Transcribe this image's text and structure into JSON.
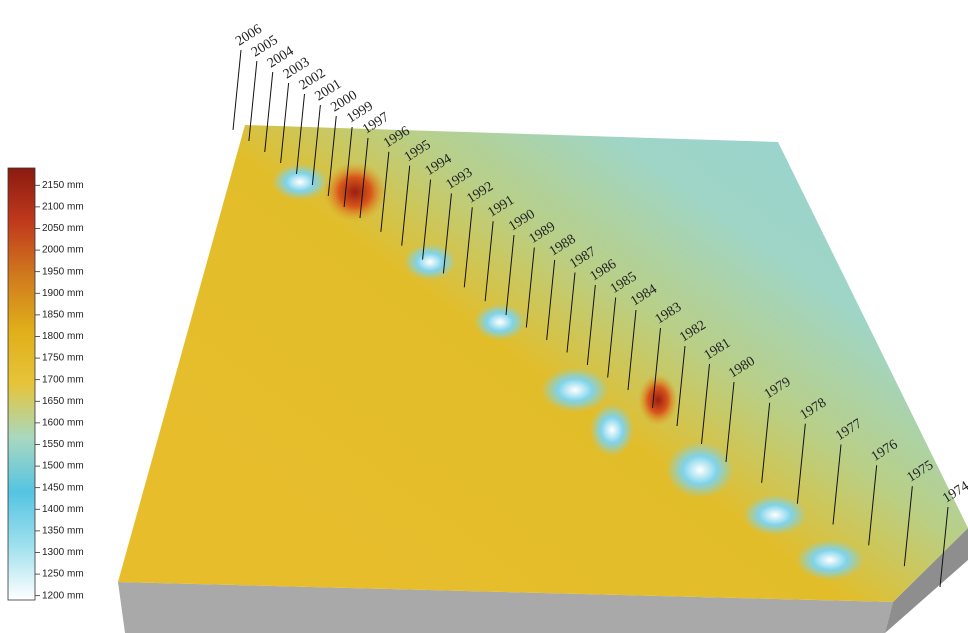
{
  "chart_data": {
    "type": "surface",
    "colorbar": {
      "ylim": [
        1190,
        2190
      ],
      "colors": [
        "#ffffff",
        "#9fe0ee",
        "#55c4e2",
        "#a8d8c0",
        "#e6c43a",
        "#e0ae1a",
        "#d07a1e",
        "#c03a1c",
        "#8a1a10"
      ],
      "yticks": [
        {
          "value": 2150,
          "label": "2150 mm"
        },
        {
          "value": 2100,
          "label": "2100 mm"
        },
        {
          "value": 2050,
          "label": "2050 mm"
        },
        {
          "value": 2000,
          "label": "2000 mm"
        },
        {
          "value": 1950,
          "label": "1950 mm"
        },
        {
          "value": 1900,
          "label": "1900 mm"
        },
        {
          "value": 1850,
          "label": "1850 mm"
        },
        {
          "value": 1800,
          "label": "1800 mm"
        },
        {
          "value": 1750,
          "label": "1750 mm"
        },
        {
          "value": 1700,
          "label": "1700 mm"
        },
        {
          "value": 1650,
          "label": "1650 mm"
        },
        {
          "value": 1600,
          "label": "1600 mm"
        },
        {
          "value": 1550,
          "label": "1550 mm"
        },
        {
          "value": 1500,
          "label": "1500 mm"
        },
        {
          "value": 1450,
          "label": "1450 mm"
        },
        {
          "value": 1400,
          "label": "1400 mm"
        },
        {
          "value": 1350,
          "label": "1350 mm"
        },
        {
          "value": 1300,
          "label": "1300 mm"
        },
        {
          "value": 1250,
          "label": "1250 mm"
        },
        {
          "value": 1200,
          "label": "1200 mm"
        }
      ]
    },
    "categories": [
      "2006",
      "2005",
      "2004",
      "2003",
      "2002",
      "2001",
      "2000",
      "1999",
      "1997",
      "1996",
      "1995",
      "1994",
      "1993",
      "1992",
      "1991",
      "1990",
      "1989",
      "1988",
      "1987",
      "1986",
      "1985",
      "1984",
      "1983",
      "1982",
      "1981",
      "1980",
      "1979",
      "1978",
      "1977",
      "1976",
      "1975",
      "1974"
    ]
  }
}
